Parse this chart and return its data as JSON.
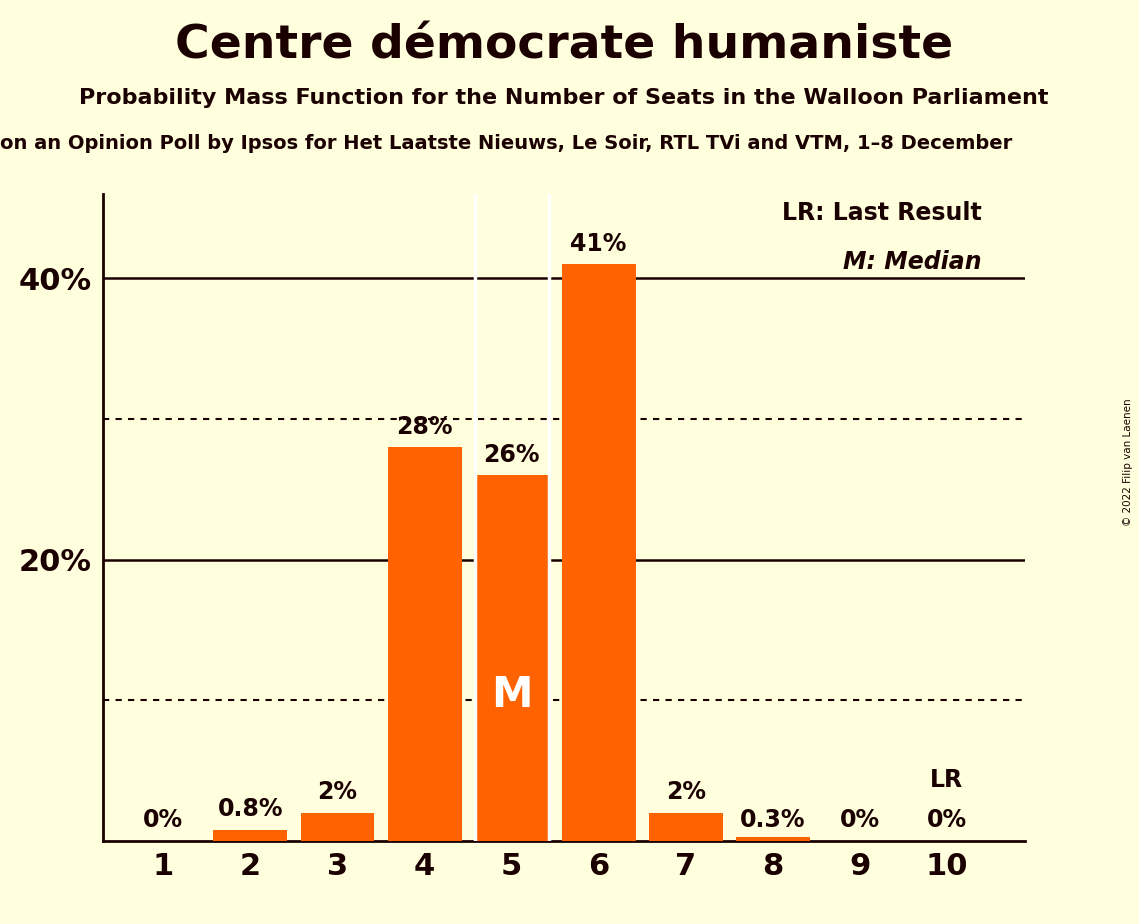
{
  "title": "Centre démocrate humaniste",
  "subtitle1": "Probability Mass Function for the Number of Seats in the Walloon Parliament",
  "subtitle2": "on an Opinion Poll by Ipsos for Het Laatste Nieuws, Le Soir, RTL TVi and VTM, 1–8 December",
  "copyright": "© 2022 Filip van Laenen",
  "categories": [
    1,
    2,
    3,
    4,
    5,
    6,
    7,
    8,
    9,
    10
  ],
  "values": [
    0.0,
    0.8,
    2.0,
    28.0,
    26.0,
    41.0,
    2.0,
    0.3,
    0.0,
    0.0
  ],
  "labels": [
    "0%",
    "0.8%",
    "2%",
    "28%",
    "26%",
    "41%",
    "2%",
    "0.3%",
    "0%",
    "0%"
  ],
  "bar_color": "#ff6200",
  "background_color": "#ffffdd",
  "text_color": "#1a0000",
  "median_bar": 5,
  "median_label": "M",
  "lr_bar": 10,
  "lr_label": "LR",
  "lr_last_result_label": "LR: Last Result",
  "median_legend_label": "M: Median",
  "ylim": [
    0,
    46
  ],
  "dotted_lines": [
    10,
    30
  ],
  "solid_lines": [
    20,
    40
  ],
  "bar_width": 0.85
}
